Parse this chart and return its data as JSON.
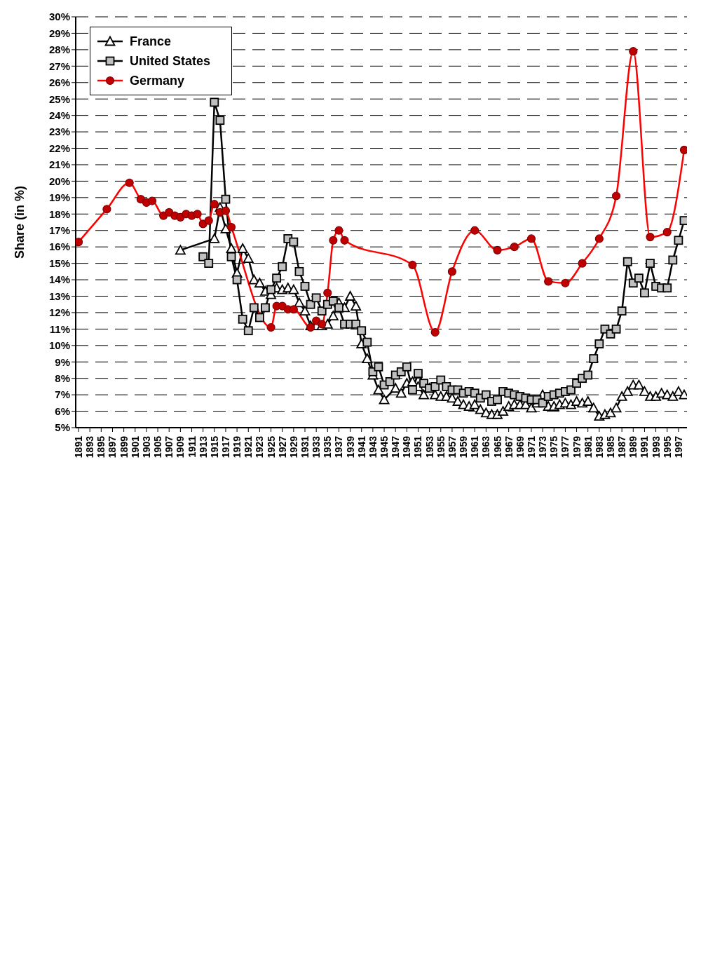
{
  "chart_data": {
    "type": "line",
    "ylabel": "Share (in %)",
    "xlim": [
      1890.5,
      1998.5
    ],
    "xticks": [
      1891,
      1893,
      1895,
      1897,
      1899,
      1901,
      1903,
      1905,
      1907,
      1909,
      1911,
      1913,
      1915,
      1917,
      1919,
      1921,
      1923,
      1925,
      1927,
      1929,
      1931,
      1933,
      1935,
      1937,
      1939,
      1941,
      1943,
      1945,
      1947,
      1949,
      1951,
      1953,
      1955,
      1957,
      1959,
      1961,
      1963,
      1965,
      1967,
      1969,
      1971,
      1973,
      1975,
      1977,
      1979,
      1981,
      1983,
      1985,
      1987,
      1989,
      1991,
      1993,
      1995,
      1997
    ],
    "ylim": [
      5,
      30
    ],
    "yticks": [
      {
        "value": 5,
        "label": "5%"
      },
      {
        "value": 6,
        "label": "6%"
      },
      {
        "value": 7,
        "label": "7%"
      },
      {
        "value": 8,
        "label": "8%"
      },
      {
        "value": 9,
        "label": "9%"
      },
      {
        "value": 10,
        "label": "10%"
      },
      {
        "value": 11,
        "label": "11%"
      },
      {
        "value": 12,
        "label": "12%"
      },
      {
        "value": 13,
        "label": "13%"
      },
      {
        "value": 14,
        "label": "14%"
      },
      {
        "value": 15,
        "label": "15%"
      },
      {
        "value": 16,
        "label": "16%"
      },
      {
        "value": 17,
        "label": "17%"
      },
      {
        "value": 18,
        "label": "18%"
      },
      {
        "value": 19,
        "label": "19%"
      },
      {
        "value": 20,
        "label": "20%"
      },
      {
        "value": 21,
        "label": "21%"
      },
      {
        "value": 22,
        "label": "22%"
      },
      {
        "value": 23,
        "label": "23%"
      },
      {
        "value": 24,
        "label": "24%"
      },
      {
        "value": 25,
        "label": "25%"
      },
      {
        "value": 26,
        "label": "26%"
      },
      {
        "value": 27,
        "label": "27%"
      },
      {
        "value": 28,
        "label": "28%"
      },
      {
        "value": 29,
        "label": "29%"
      },
      {
        "value": 30,
        "label": "30%"
      }
    ],
    "grid": "y",
    "legend": "top left",
    "series": [
      {
        "name": "France",
        "color": "#000000",
        "marker": "triangle",
        "x": [
          1909,
          1915,
          1916,
          1917,
          1918,
          1919,
          1920,
          1921,
          1922,
          1923,
          1924,
          1925,
          1926,
          1927,
          1928,
          1929,
          1930,
          1931,
          1932,
          1933,
          1934,
          1935,
          1936,
          1937,
          1938,
          1939,
          1940,
          1941,
          1942,
          1943,
          1944,
          1945,
          1947,
          1948,
          1949,
          1950,
          1951,
          1952,
          1953,
          1954,
          1955,
          1956,
          1957,
          1958,
          1959,
          1960,
          1961,
          1962,
          1963,
          1964,
          1965,
          1966,
          1967,
          1968,
          1969,
          1970,
          1971,
          1972,
          1973,
          1974,
          1975,
          1976,
          1977,
          1978,
          1979,
          1980,
          1981,
          1982,
          1983,
          1984,
          1985,
          1986,
          1987,
          1988,
          1989,
          1990,
          1991,
          1992,
          1993,
          1994,
          1995,
          1996,
          1997,
          1998
        ],
        "values": [
          15.8,
          16.5,
          18.4,
          17.1,
          15.9,
          14.4,
          15.9,
          15.3,
          14.0,
          13.8,
          13.3,
          13.1,
          13.5,
          13.4,
          13.5,
          13.4,
          12.6,
          12.1,
          11.2,
          11.2,
          11.2,
          11.3,
          11.8,
          12.6,
          12.3,
          13.0,
          12.4,
          10.1,
          9.2,
          8.2,
          7.3,
          6.7,
          7.4,
          7.1,
          7.7,
          7.8,
          7.5,
          7.0,
          7.4,
          7.0,
          6.9,
          6.9,
          6.8,
          6.6,
          6.4,
          6.3,
          6.4,
          6.1,
          5.9,
          5.8,
          5.8,
          6.0,
          6.3,
          6.4,
          6.4,
          6.4,
          6.2,
          6.5,
          7.0,
          6.3,
          6.3,
          6.4,
          6.5,
          6.4,
          6.6,
          6.5,
          6.6,
          6.2,
          5.7,
          5.8,
          5.9,
          6.2,
          6.9,
          7.2,
          7.6,
          7.6,
          7.2,
          6.9,
          6.9,
          7.1,
          7.0,
          6.9,
          7.2,
          7.0
        ]
      },
      {
        "name": "United States",
        "color": "#000000",
        "marker": "square",
        "x": [
          1913,
          1914,
          1915,
          1916,
          1917,
          1918,
          1919,
          1920,
          1921,
          1922,
          1923,
          1924,
          1925,
          1926,
          1927,
          1928,
          1929,
          1930,
          1931,
          1932,
          1933,
          1934,
          1935,
          1936,
          1937,
          1938,
          1939,
          1940,
          1941,
          1942,
          1943,
          1944,
          1945,
          1946,
          1947,
          1948,
          1949,
          1950,
          1951,
          1952,
          1953,
          1954,
          1955,
          1956,
          1957,
          1958,
          1959,
          1960,
          1961,
          1962,
          1963,
          1964,
          1965,
          1966,
          1967,
          1968,
          1969,
          1970,
          1971,
          1972,
          1973,
          1974,
          1975,
          1976,
          1977,
          1978,
          1979,
          1980,
          1981,
          1982,
          1983,
          1984,
          1985,
          1986,
          1987,
          1988,
          1989,
          1990,
          1991,
          1992,
          1993,
          1994,
          1995,
          1996,
          1997,
          1998
        ],
        "values": [
          15.4,
          15.0,
          24.8,
          23.7,
          18.9,
          15.4,
          14.0,
          11.6,
          10.9,
          12.3,
          11.7,
          12.3,
          13.4,
          14.1,
          14.8,
          16.5,
          16.3,
          14.5,
          13.6,
          12.5,
          12.9,
          12.1,
          12.5,
          12.7,
          12.3,
          11.3,
          11.3,
          11.3,
          10.9,
          10.2,
          8.4,
          8.7,
          7.6,
          7.8,
          8.2,
          8.4,
          8.7,
          7.3,
          8.3,
          7.7,
          7.4,
          7.5,
          7.9,
          7.5,
          7.3,
          7.3,
          7.1,
          7.2,
          7.1,
          6.8,
          7.0,
          6.6,
          6.7,
          7.2,
          7.1,
          7.0,
          6.9,
          6.8,
          6.7,
          6.7,
          6.5,
          6.9,
          7.0,
          7.1,
          7.2,
          7.3,
          7.7,
          8.0,
          8.2,
          9.2,
          10.1,
          11.0,
          10.7,
          11.0,
          12.1,
          15.1,
          13.8,
          14.1,
          13.2,
          15.0,
          13.6,
          13.5,
          13.5,
          15.2,
          16.4,
          17.6
        ]
      },
      {
        "name": "Germany",
        "color": "#ff0000",
        "marker": "circle",
        "x": [
          1891,
          1896,
          1900,
          1902,
          1903,
          1904,
          1906,
          1907,
          1908,
          1909,
          1910,
          1911,
          1912,
          1913,
          1914,
          1915,
          1916,
          1917,
          1918,
          1925,
          1926,
          1927,
          1928,
          1929,
          1932,
          1933,
          1934,
          1935,
          1936,
          1937,
          1938,
          1950,
          1954,
          1957,
          1961,
          1965,
          1968,
          1971,
          1974,
          1977,
          1980,
          1983,
          1986,
          1989,
          1992,
          1995,
          1998
        ],
        "values": [
          16.3,
          18.3,
          19.9,
          18.9,
          18.7,
          18.8,
          17.9,
          18.1,
          17.9,
          17.8,
          18.0,
          17.9,
          18.0,
          17.4,
          17.6,
          18.6,
          18.1,
          18.2,
          17.2,
          11.1,
          12.4,
          12.4,
          12.2,
          12.2,
          11.1,
          11.5,
          11.3,
          13.2,
          16.4,
          17.0,
          16.4,
          14.9,
          10.8,
          14.5,
          17.0,
          15.8,
          16.0,
          16.5,
          13.9,
          13.8,
          15.0,
          16.5,
          19.1,
          27.9,
          16.6,
          16.9,
          21.9
        ]
      }
    ]
  }
}
